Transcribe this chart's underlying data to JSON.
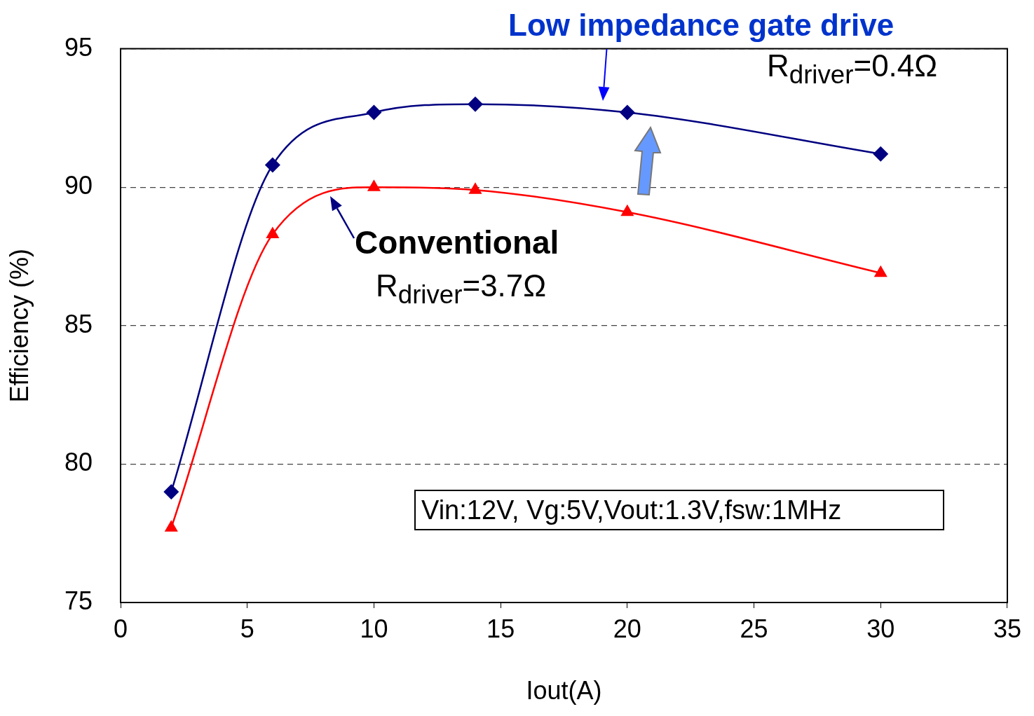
{
  "chart_data": {
    "type": "line",
    "xlabel": "Iout(A)",
    "ylabel": "Efficiency (%)",
    "x": [
      2,
      6,
      10,
      14,
      20,
      30
    ],
    "series": [
      {
        "color": "#000080",
        "marker": "diamond",
        "values": [
          79.0,
          90.8,
          92.7,
          93.0,
          92.7,
          91.2
        ]
      },
      {
        "color": "#ff0000",
        "marker": "triangle",
        "values": [
          77.7,
          88.3,
          90.0,
          89.9,
          89.1,
          86.9
        ]
      }
    ],
    "xlim": [
      0,
      35
    ],
    "xticks": [
      0,
      5,
      10,
      15,
      20,
      25,
      30,
      35
    ],
    "ylim": [
      75,
      95
    ],
    "yticks": [
      75,
      80,
      85,
      90,
      95
    ],
    "grid": "y",
    "legend": false,
    "line_style": "solid",
    "annotations": [
      {
        "text": "Low impedance gate drive",
        "x": 18.8,
        "y": 92.9
      },
      "R$_{driver}$=0.4Ω",
      "Conventional",
      "R$_{driver}$=3.7Ω",
      "Vin:12V, Vg:5V,Vout:1.3V,fsw:1MHz"
    ]
  }
}
